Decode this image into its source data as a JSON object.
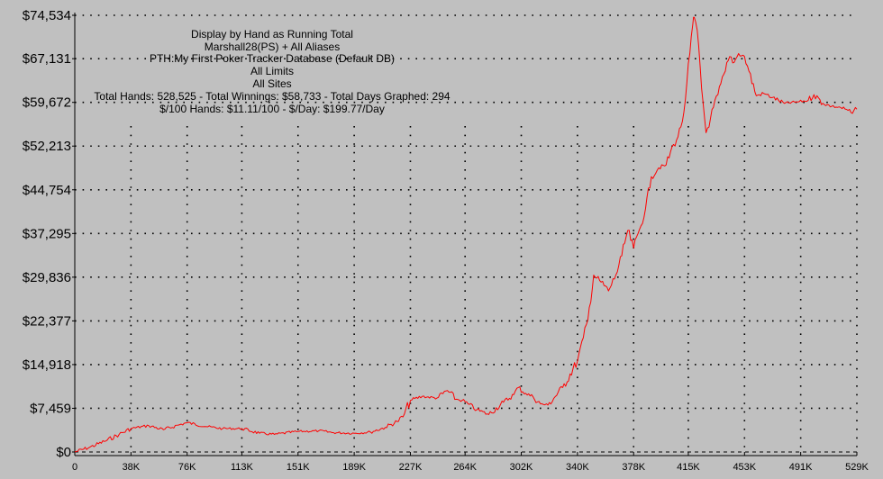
{
  "chart_data": {
    "type": "line",
    "info_lines": [
      "Display by Hand as Running Total",
      "Marshall28(PS) + All Aliases",
      "PTH:My First Poker Tracker Database (Default DB)",
      "All Limits",
      "All Sites",
      "Total Hands: 528,525 - Total Winnings: $58,733 - Total Days Graphed: 294",
      "$/100 Hands: $11.11/100 - $/Day: $199.77/Day"
    ],
    "xlim": [
      0,
      529000
    ],
    "ylim": [
      0,
      74534
    ],
    "x_ticks": [
      {
        "value": 0,
        "label": "0"
      },
      {
        "value": 38000,
        "label": "38K"
      },
      {
        "value": 76000,
        "label": "76K"
      },
      {
        "value": 113000,
        "label": "113K"
      },
      {
        "value": 151000,
        "label": "151K"
      },
      {
        "value": 189000,
        "label": "189K"
      },
      {
        "value": 227000,
        "label": "227K"
      },
      {
        "value": 264000,
        "label": "264K"
      },
      {
        "value": 302000,
        "label": "302K"
      },
      {
        "value": 340000,
        "label": "340K"
      },
      {
        "value": 378000,
        "label": "378K"
      },
      {
        "value": 415000,
        "label": "415K"
      },
      {
        "value": 453000,
        "label": "453K"
      },
      {
        "value": 491000,
        "label": "491K"
      },
      {
        "value": 529000,
        "label": "529K"
      }
    ],
    "y_ticks": [
      {
        "value": 0,
        "label": "$0"
      },
      {
        "value": 7459,
        "label": "$7,459"
      },
      {
        "value": 14918,
        "label": "$14,918"
      },
      {
        "value": 22377,
        "label": "$22,377"
      },
      {
        "value": 29836,
        "label": "$29,836"
      },
      {
        "value": 37295,
        "label": "$37,295"
      },
      {
        "value": 44754,
        "label": "$44,754"
      },
      {
        "value": 52213,
        "label": "$52,213"
      },
      {
        "value": 59672,
        "label": "$59,672"
      },
      {
        "value": 67131,
        "label": "$67,131"
      },
      {
        "value": 74534,
        "label": "$74,534"
      }
    ],
    "grid": true,
    "line_color": "#ff0000",
    "series": [
      {
        "x": [
          0,
          10000,
          20000,
          30000,
          38000,
          50000,
          60000,
          70000,
          76000,
          90000,
          100000,
          113000,
          125000,
          135000,
          151000,
          165000,
          175000,
          189000,
          200000,
          210000,
          218000,
          222000,
          227000,
          235000,
          245000,
          252000,
          258000,
          262000,
          266000,
          272000,
          280000,
          290000,
          297000,
          300000,
          305000,
          310000,
          315000,
          320000,
          330000,
          340000,
          344000,
          347000,
          351000,
          356000,
          361000,
          366000,
          370000,
          374000,
          378000,
          382000,
          386000,
          390000,
          395000,
          400000,
          405000,
          408000,
          410000,
          412000,
          414000,
          416000,
          418000,
          419000,
          421000,
          424000,
          427000,
          430000,
          435000,
          440000,
          443000,
          446000,
          449000,
          453000,
          456000,
          461000,
          466000,
          472000,
          480000,
          490000,
          496000,
          500000,
          506000,
          512000,
          518000,
          523000,
          526000,
          529000
        ],
        "y": [
          0,
          800,
          1800,
          3000,
          4000,
          4500,
          3800,
          4600,
          5000,
          4300,
          4000,
          4000,
          3200,
          3000,
          3500,
          3600,
          3300,
          3200,
          3400,
          4200,
          5200,
          6000,
          8800,
          9500,
          9200,
          10500,
          9000,
          8800,
          8200,
          7200,
          6400,
          8500,
          9800,
          11000,
          10000,
          9400,
          8200,
          8000,
          11000,
          15500,
          19500,
          22500,
          30200,
          29000,
          27500,
          30200,
          33500,
          37800,
          34800,
          38000,
          41500,
          47000,
          48500,
          49000,
          52500,
          53800,
          55500,
          58000,
          63000,
          68000,
          73000,
          74200,
          72000,
          62000,
          54500,
          57000,
          61000,
          65000,
          67500,
          66500,
          68000,
          67500,
          65000,
          60800,
          61200,
          60500,
          59500,
          59800,
          60000,
          61000,
          59500,
          59000,
          58800,
          58300,
          57800,
          58500
        ]
      }
    ]
  }
}
